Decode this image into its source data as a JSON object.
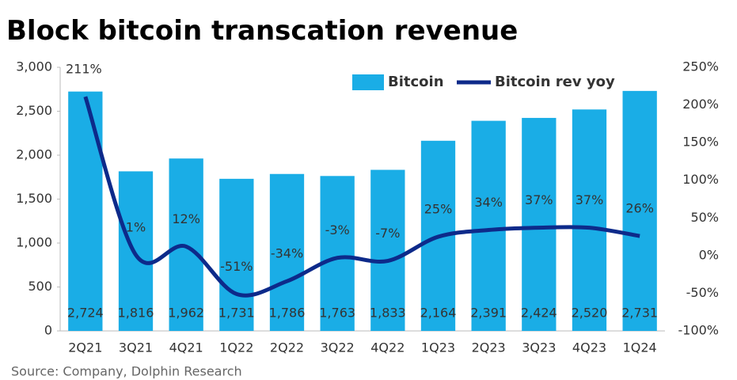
{
  "chart_data": {
    "type": "bar",
    "title": "Block bitcoin transcation revenue",
    "source": "Source: Company, Dolphin Research",
    "categories": [
      "2Q21",
      "3Q21",
      "4Q21",
      "1Q22",
      "2Q22",
      "3Q22",
      "4Q22",
      "1Q23",
      "2Q23",
      "3Q23",
      "4Q23",
      "1Q24"
    ],
    "series": [
      {
        "name": "Bitcoin",
        "type": "bar",
        "color": "#1aade6",
        "values": [
          2724,
          1816,
          1962,
          1731,
          1786,
          1763,
          1833,
          2164,
          2391,
          2424,
          2520,
          2731
        ],
        "value_labels": [
          "2,724",
          "1,816",
          "1,962",
          "1,731",
          "1,786",
          "1,763",
          "1,833",
          "2,164",
          "2,391",
          "2,424",
          "2,520",
          "2,731"
        ]
      },
      {
        "name": "Bitcoin rev yoy",
        "type": "line",
        "axis": "y2",
        "color": "#0d2a8a",
        "values": [
          211,
          1,
          12,
          -51,
          -34,
          -3,
          -7,
          25,
          34,
          37,
          37,
          26
        ],
        "value_labels": [
          "211%",
          "1%",
          "12%",
          "-51%",
          "-34%",
          "-3%",
          "-7%",
          "25%",
          "34%",
          "37%",
          "37%",
          "26%"
        ]
      }
    ],
    "ylim": [
      0,
      3000
    ],
    "yticks": [
      0,
      500,
      {
        "value": 1000,
        "label": "1,000"
      },
      {
        "value": 1500,
        "label": "1,500"
      },
      {
        "value": 2000,
        "label": "2,000"
      },
      {
        "value": 2500,
        "label": "2,500"
      },
      {
        "value": 3000,
        "label": "3,000"
      }
    ],
    "y2lim": [
      -100,
      250
    ],
    "y2ticks": [
      {
        "value": -100,
        "label": "-100%"
      },
      {
        "value": -50,
        "label": "-50%"
      },
      {
        "value": 0,
        "label": "0%"
      },
      {
        "value": 50,
        "label": "50%"
      },
      {
        "value": 100,
        "label": "100%"
      },
      {
        "value": 150,
        "label": "150%"
      },
      {
        "value": 200,
        "label": "200%"
      },
      {
        "value": 250,
        "label": "250%"
      }
    ],
    "grid": false
  }
}
